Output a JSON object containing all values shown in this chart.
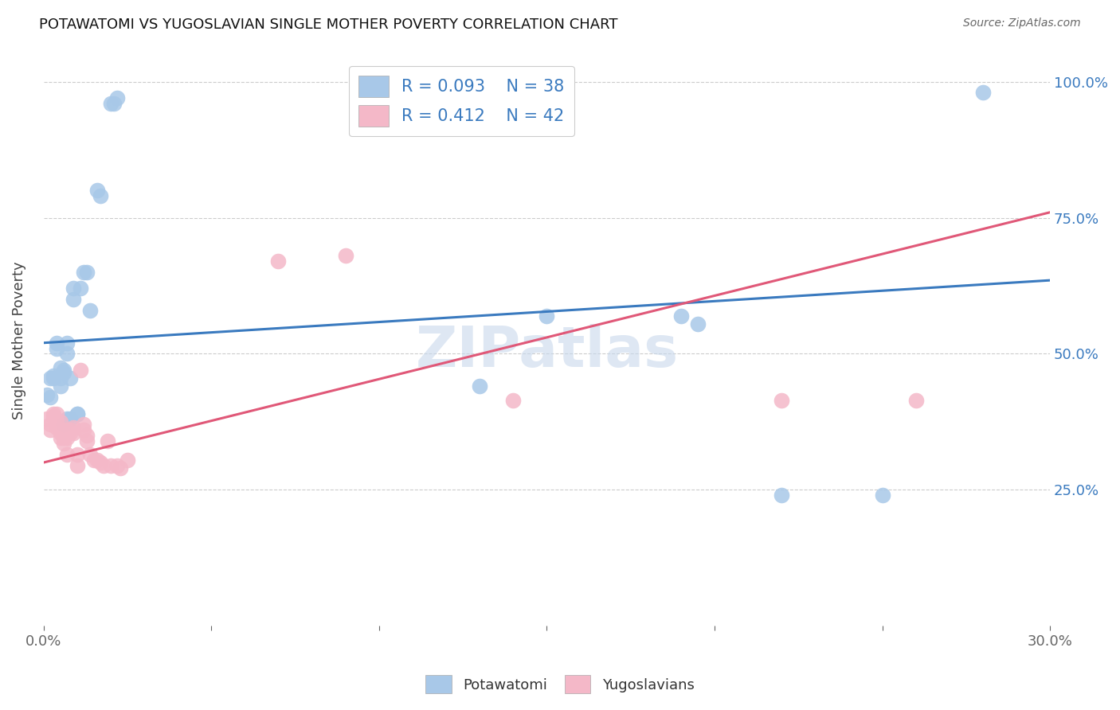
{
  "title": "POTAWATOMI VS YUGOSLAVIAN SINGLE MOTHER POVERTY CORRELATION CHART",
  "source": "Source: ZipAtlas.com",
  "ylabel": "Single Mother Poverty",
  "ytick_labels": [
    "25.0%",
    "50.0%",
    "75.0%",
    "100.0%"
  ],
  "ytick_values": [
    0.25,
    0.5,
    0.75,
    1.0
  ],
  "xmin": 0.0,
  "xmax": 0.3,
  "ymin": 0.0,
  "ymax": 1.05,
  "legend_r1": "0.093",
  "legend_n1": "38",
  "legend_r2": "0.412",
  "legend_n2": "42",
  "blue_color": "#a8c8e8",
  "pink_color": "#f4b8c8",
  "blue_line_color": "#3a7abf",
  "pink_line_color": "#e05878",
  "blue_scatter": [
    [
      0.001,
      0.425
    ],
    [
      0.002,
      0.455
    ],
    [
      0.002,
      0.42
    ],
    [
      0.003,
      0.46
    ],
    [
      0.003,
      0.455
    ],
    [
      0.004,
      0.52
    ],
    [
      0.004,
      0.51
    ],
    [
      0.005,
      0.475
    ],
    [
      0.005,
      0.44
    ],
    [
      0.005,
      0.455
    ],
    [
      0.006,
      0.465
    ],
    [
      0.006,
      0.47
    ],
    [
      0.007,
      0.52
    ],
    [
      0.007,
      0.5
    ],
    [
      0.008,
      0.455
    ],
    [
      0.008,
      0.38
    ],
    [
      0.009,
      0.6
    ],
    [
      0.009,
      0.62
    ],
    [
      0.01,
      0.39
    ],
    [
      0.01,
      0.39
    ],
    [
      0.011,
      0.62
    ],
    [
      0.012,
      0.65
    ],
    [
      0.013,
      0.65
    ],
    [
      0.014,
      0.58
    ],
    [
      0.016,
      0.8
    ],
    [
      0.017,
      0.79
    ],
    [
      0.15,
      0.57
    ],
    [
      0.19,
      0.57
    ],
    [
      0.195,
      0.555
    ],
    [
      0.13,
      0.44
    ],
    [
      0.22,
      0.24
    ],
    [
      0.25,
      0.24
    ],
    [
      0.28,
      0.98
    ],
    [
      0.02,
      0.96
    ],
    [
      0.021,
      0.96
    ],
    [
      0.022,
      0.97
    ],
    [
      0.006,
      0.37
    ],
    [
      0.007,
      0.38
    ]
  ],
  "pink_scatter": [
    [
      0.001,
      0.38
    ],
    [
      0.002,
      0.37
    ],
    [
      0.002,
      0.36
    ],
    [
      0.003,
      0.39
    ],
    [
      0.003,
      0.385
    ],
    [
      0.004,
      0.39
    ],
    [
      0.004,
      0.375
    ],
    [
      0.004,
      0.365
    ],
    [
      0.005,
      0.375
    ],
    [
      0.005,
      0.355
    ],
    [
      0.005,
      0.345
    ],
    [
      0.006,
      0.345
    ],
    [
      0.006,
      0.335
    ],
    [
      0.007,
      0.36
    ],
    [
      0.007,
      0.345
    ],
    [
      0.007,
      0.315
    ],
    [
      0.008,
      0.36
    ],
    [
      0.008,
      0.355
    ],
    [
      0.009,
      0.365
    ],
    [
      0.009,
      0.355
    ],
    [
      0.01,
      0.295
    ],
    [
      0.01,
      0.315
    ],
    [
      0.011,
      0.47
    ],
    [
      0.012,
      0.37
    ],
    [
      0.012,
      0.36
    ],
    [
      0.013,
      0.35
    ],
    [
      0.013,
      0.34
    ],
    [
      0.014,
      0.315
    ],
    [
      0.015,
      0.305
    ],
    [
      0.016,
      0.305
    ],
    [
      0.017,
      0.3
    ],
    [
      0.018,
      0.295
    ],
    [
      0.019,
      0.34
    ],
    [
      0.02,
      0.295
    ],
    [
      0.022,
      0.295
    ],
    [
      0.023,
      0.29
    ],
    [
      0.025,
      0.305
    ],
    [
      0.07,
      0.67
    ],
    [
      0.09,
      0.68
    ],
    [
      0.14,
      0.415
    ],
    [
      0.22,
      0.415
    ],
    [
      0.26,
      0.415
    ]
  ],
  "watermark": "ZIPatlas",
  "background_color": "#ffffff",
  "grid_color": "#cccccc"
}
